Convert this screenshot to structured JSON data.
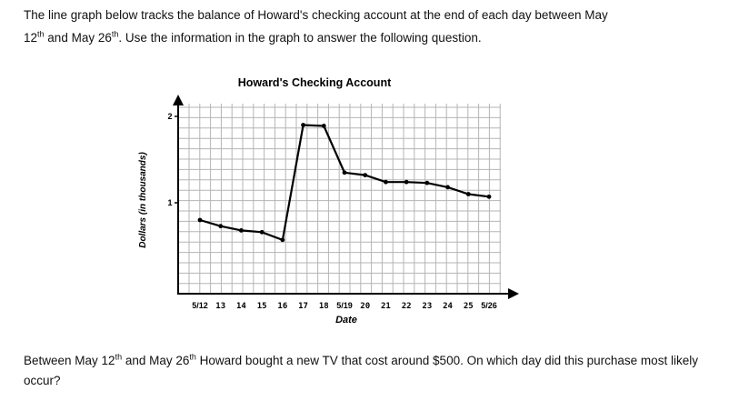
{
  "intro": {
    "line1": "The line graph below tracks the balance of Howard's checking account at the end of each day between May",
    "line2_a": "12",
    "line2_a_sup": "th",
    "line2_b": " and May 26",
    "line2_b_sup": "th",
    "line2_c": ". Use the information in the graph to answer the following question."
  },
  "question": {
    "part1": "Between May 12",
    "part1_sup": "th",
    "part2": " and May 26",
    "part2_sup": "th",
    "part3": " Howard bought a new TV that cost around $500. On which day did this purchase most likely occur?"
  },
  "chart_data": {
    "type": "line",
    "title": "Howard's Checking Account",
    "xlabel": "Date",
    "ylabel": "Dollars (in thousands)",
    "x": [
      12,
      13,
      14,
      15,
      16,
      17,
      18,
      19,
      20,
      21,
      22,
      23,
      24,
      25,
      26
    ],
    "y": [
      0.8,
      0.73,
      0.68,
      0.66,
      0.57,
      1.9,
      1.89,
      1.35,
      1.32,
      1.24,
      1.24,
      1.23,
      1.18,
      1.1,
      1.07
    ],
    "xlim": [
      12,
      26
    ],
    "ylim": [
      0,
      2.2
    ],
    "y_ticks": [
      1,
      2
    ],
    "y_tick_labels": [
      "1",
      "2"
    ],
    "x_tick_labels": [
      {
        "x": 12,
        "label": "5/12",
        "style": "printed"
      },
      {
        "x": 13,
        "label": "13",
        "style": "handwritten"
      },
      {
        "x": 14,
        "label": "14",
        "style": "handwritten"
      },
      {
        "x": 15,
        "label": "15",
        "style": "handwritten"
      },
      {
        "x": 16,
        "label": "16",
        "style": "handwritten"
      },
      {
        "x": 17,
        "label": "17",
        "style": "handwritten"
      },
      {
        "x": 18,
        "label": "18",
        "style": "handwritten"
      },
      {
        "x": 19,
        "label": "5/19",
        "style": "printed"
      },
      {
        "x": 20,
        "label": "20",
        "style": "handwritten"
      },
      {
        "x": 21,
        "label": "21",
        "style": "handwritten"
      },
      {
        "x": 22,
        "label": "22",
        "style": "handwritten"
      },
      {
        "x": 23,
        "label": "23",
        "style": "handwritten"
      },
      {
        "x": 24,
        "label": "24",
        "style": "handwritten"
      },
      {
        "x": 25,
        "label": "25",
        "style": "handwritten"
      },
      {
        "x": 26,
        "label": "5/26",
        "style": "printed"
      }
    ],
    "grid": true,
    "line_color": "#000000",
    "grid_color": "#b5b5b5"
  }
}
